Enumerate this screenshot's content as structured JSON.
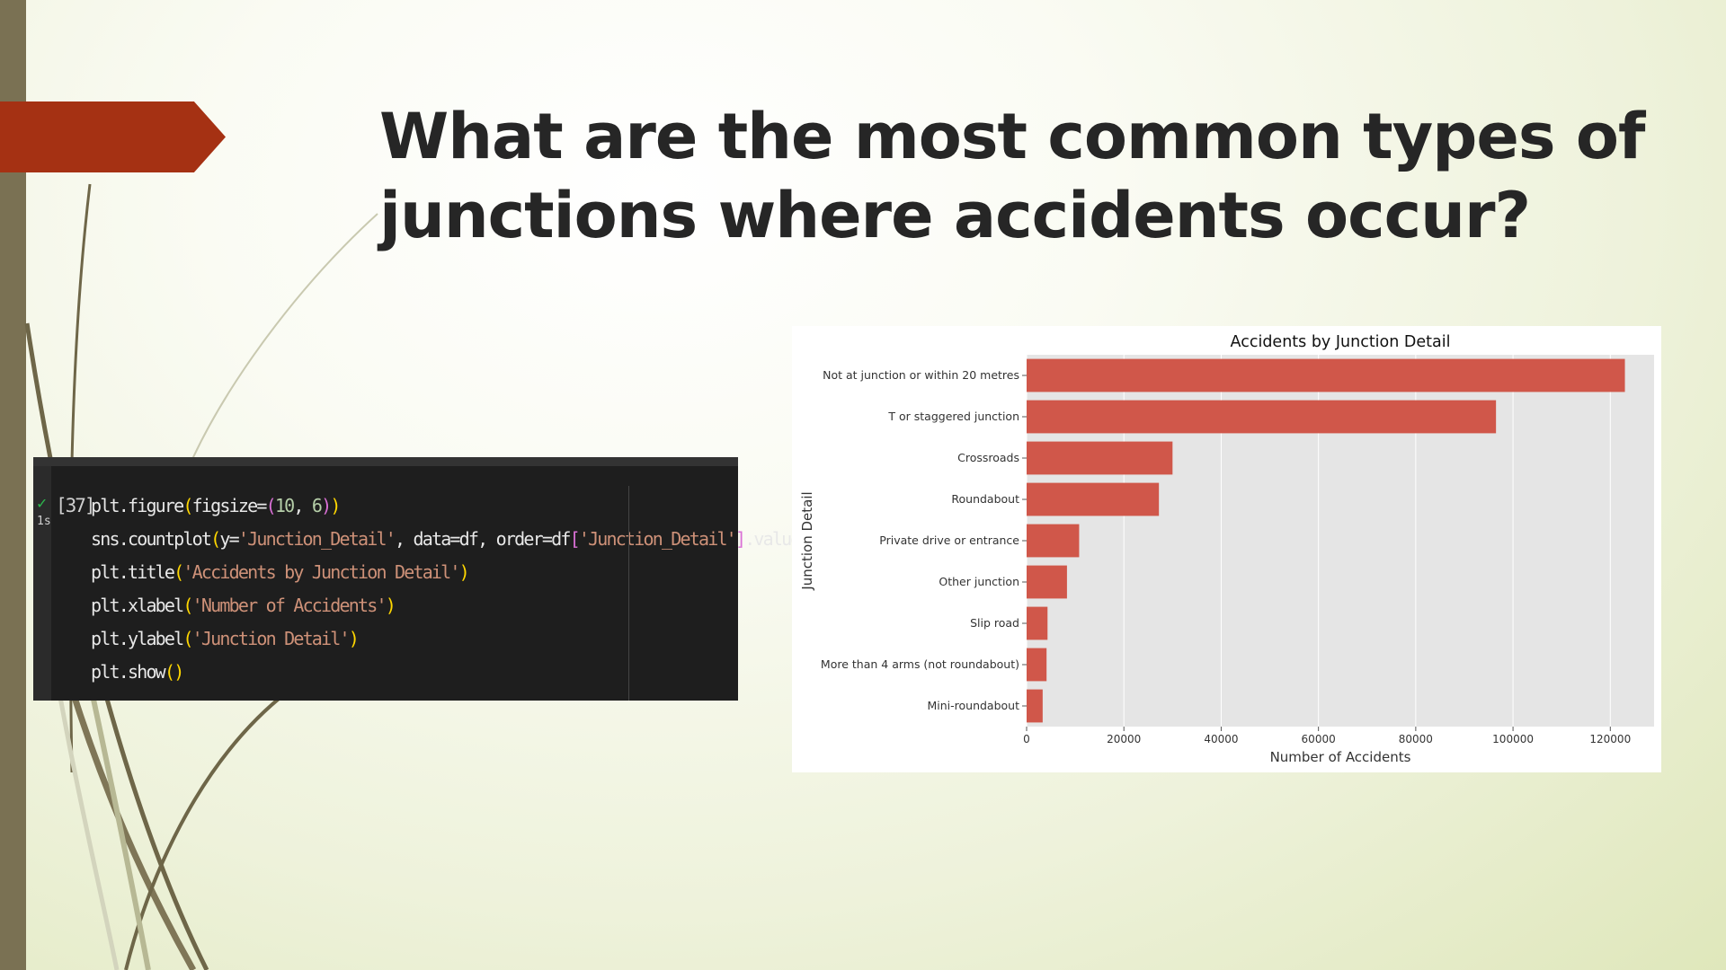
{
  "slide": {
    "title": "What are the most common types of junctions where accidents occur?"
  },
  "code_cell": {
    "execution_count": "[37]",
    "run_time": "1s",
    "lines": [
      "plt.figure(figsize=(10, 6))",
      "sns.countplot(y='Junction_Detail', data=df, order=df['Junction_Detail'].value_counts().index)",
      "plt.title('Accidents by Junction Detail')",
      "plt.xlabel('Number of Accidents')",
      "plt.ylabel('Junction Detail')",
      "plt.show()"
    ]
  },
  "chart_data": {
    "type": "bar",
    "orientation": "horizontal",
    "title": "Accidents by Junction Detail",
    "xlabel": "Number of Accidents",
    "ylabel": "Junction Detail",
    "categories": [
      "Not at junction or within 20 metres",
      "T or staggered junction",
      "Crossroads",
      "Roundabout",
      "Private drive or entrance",
      "Other junction",
      "Slip road",
      "More than 4 arms (not roundabout)",
      "Mini-roundabout"
    ],
    "values": [
      123000,
      96500,
      30000,
      27200,
      10800,
      8300,
      4300,
      4100,
      3300
    ],
    "xlim": [
      0,
      129000
    ],
    "xticks": [
      0,
      20000,
      40000,
      60000,
      80000,
      100000,
      120000
    ],
    "xtick_labels": [
      "0",
      "20000",
      "40000",
      "60000",
      "80000",
      "100000",
      "120000"
    ],
    "grid": true,
    "bar_color": "#d0574a",
    "background_color": "#e5e5e5"
  },
  "colors": {
    "accent": "#a53113",
    "sidebar": "#7a7153",
    "title_text": "#262626"
  }
}
